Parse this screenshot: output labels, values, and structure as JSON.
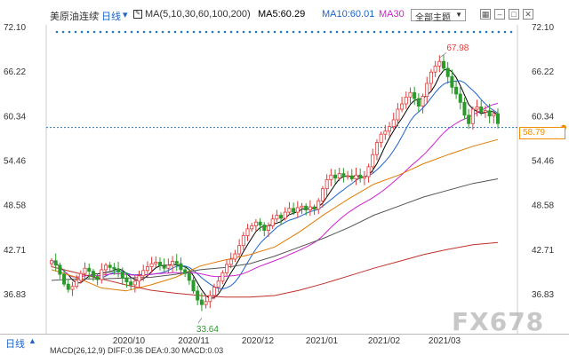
{
  "toolbar": {
    "instrument": "美原油连续",
    "period": "日线",
    "ma_label": "MA(5,10,30,60,100,200)",
    "ma5": "MA5:60.29",
    "ma10": "MA10:60.01",
    "ma30": "MA30",
    "view_select": "全部主题",
    "colors": {
      "ma5": "#000000",
      "ma10": "#1e64c8",
      "ma30": "#d020d0"
    }
  },
  "bottom": {
    "period_button": "日线",
    "macd_text": "MACD(26,12,9) DIFF:0.36 DEA:0.30 MACD:0.03"
  },
  "last_price_badge": "58.79",
  "watermark": "FX678",
  "chart_data": {
    "type": "candlestick",
    "y_ticks": [
      "72.10",
      "66.22",
      "60.34",
      "54.46",
      "48.58",
      "42.71",
      "36.83"
    ],
    "ylim": [
      33.0,
      72.1
    ],
    "x_ticks": [
      "2020/10",
      "2020/11",
      "2020/12",
      "2021/01",
      "2021/02",
      "2021/03"
    ],
    "annotations": {
      "high": "67.98",
      "low": "33.64"
    },
    "last_price": 58.79,
    "colors": {
      "up": "#e23a3a",
      "down": "#2a9a2a",
      "ma5": "#000000",
      "ma10": "#1e64c8",
      "ma30": "#d020d0",
      "ma60": "#e07b00",
      "ma100": "#555555",
      "ma200": "#c0302a",
      "dotted": "#2a78b8"
    },
    "series": [
      {
        "name": "price",
        "values": [
          41.2,
          40.6,
          39.4,
          38.1,
          37.4,
          37.8,
          38.6,
          39.5,
          40.2,
          39.8,
          39.1,
          38.7,
          40.0,
          40.6,
          40.3,
          40.1,
          39.7,
          38.9,
          38.4,
          38.0,
          38.5,
          39.2,
          39.9,
          40.4,
          40.8,
          41.0,
          40.5,
          40.2,
          40.6,
          41.1,
          40.8,
          40.0,
          39.5,
          38.6,
          37.2,
          36.0,
          35.4,
          35.8,
          36.6,
          37.7,
          38.5,
          39.6,
          40.7,
          41.4,
          42.1,
          43.2,
          44.5,
          45.4,
          45.8,
          46.3,
          45.9,
          45.2,
          45.8,
          46.7,
          47.2,
          46.8,
          47.6,
          48.1,
          47.6,
          48.2,
          48.4,
          47.9,
          48.3,
          48.0,
          49.1,
          50.7,
          51.9,
          52.5,
          52.1,
          52.7,
          52.3,
          52.4,
          52.0,
          52.5,
          52.1,
          52.3,
          53.6,
          55.2,
          56.8,
          57.9,
          58.3,
          58.9,
          59.8,
          61.2,
          61.9,
          62.8,
          63.4,
          62.6,
          61.6,
          62.9,
          64.6,
          66.1,
          66.9,
          67.5,
          66.6,
          65.5,
          64.1,
          63.2,
          62.1,
          60.4,
          59.3,
          61.2,
          61.5,
          60.8,
          61.0,
          60.3,
          60.6,
          59.3
        ]
      }
    ],
    "ma_lines": [
      {
        "name": "MA60",
        "values": [
          40.0,
          39.0,
          37.6,
          37.2,
          38.0,
          39.0,
          40.5,
          41.3,
          42.0,
          43.0,
          45.0,
          47.3,
          49.4,
          51.3,
          52.5,
          54.0,
          55.2,
          56.3,
          57.2
        ]
      },
      {
        "name": "MA100",
        "values": [
          38.6,
          38.8,
          38.8,
          38.9,
          39.0,
          39.4,
          40.0,
          40.3,
          40.8,
          41.8,
          43.0,
          44.2,
          45.6,
          47.2,
          48.4,
          49.6,
          50.5,
          51.4,
          52.0
        ]
      },
      {
        "name": "MA200",
        "values": [
          40.4,
          39.6,
          38.8,
          38.0,
          37.3,
          36.9,
          36.6,
          36.4,
          36.4,
          36.6,
          37.3,
          38.2,
          39.2,
          40.2,
          41.1,
          42.0,
          42.7,
          43.3,
          43.6
        ]
      }
    ]
  }
}
